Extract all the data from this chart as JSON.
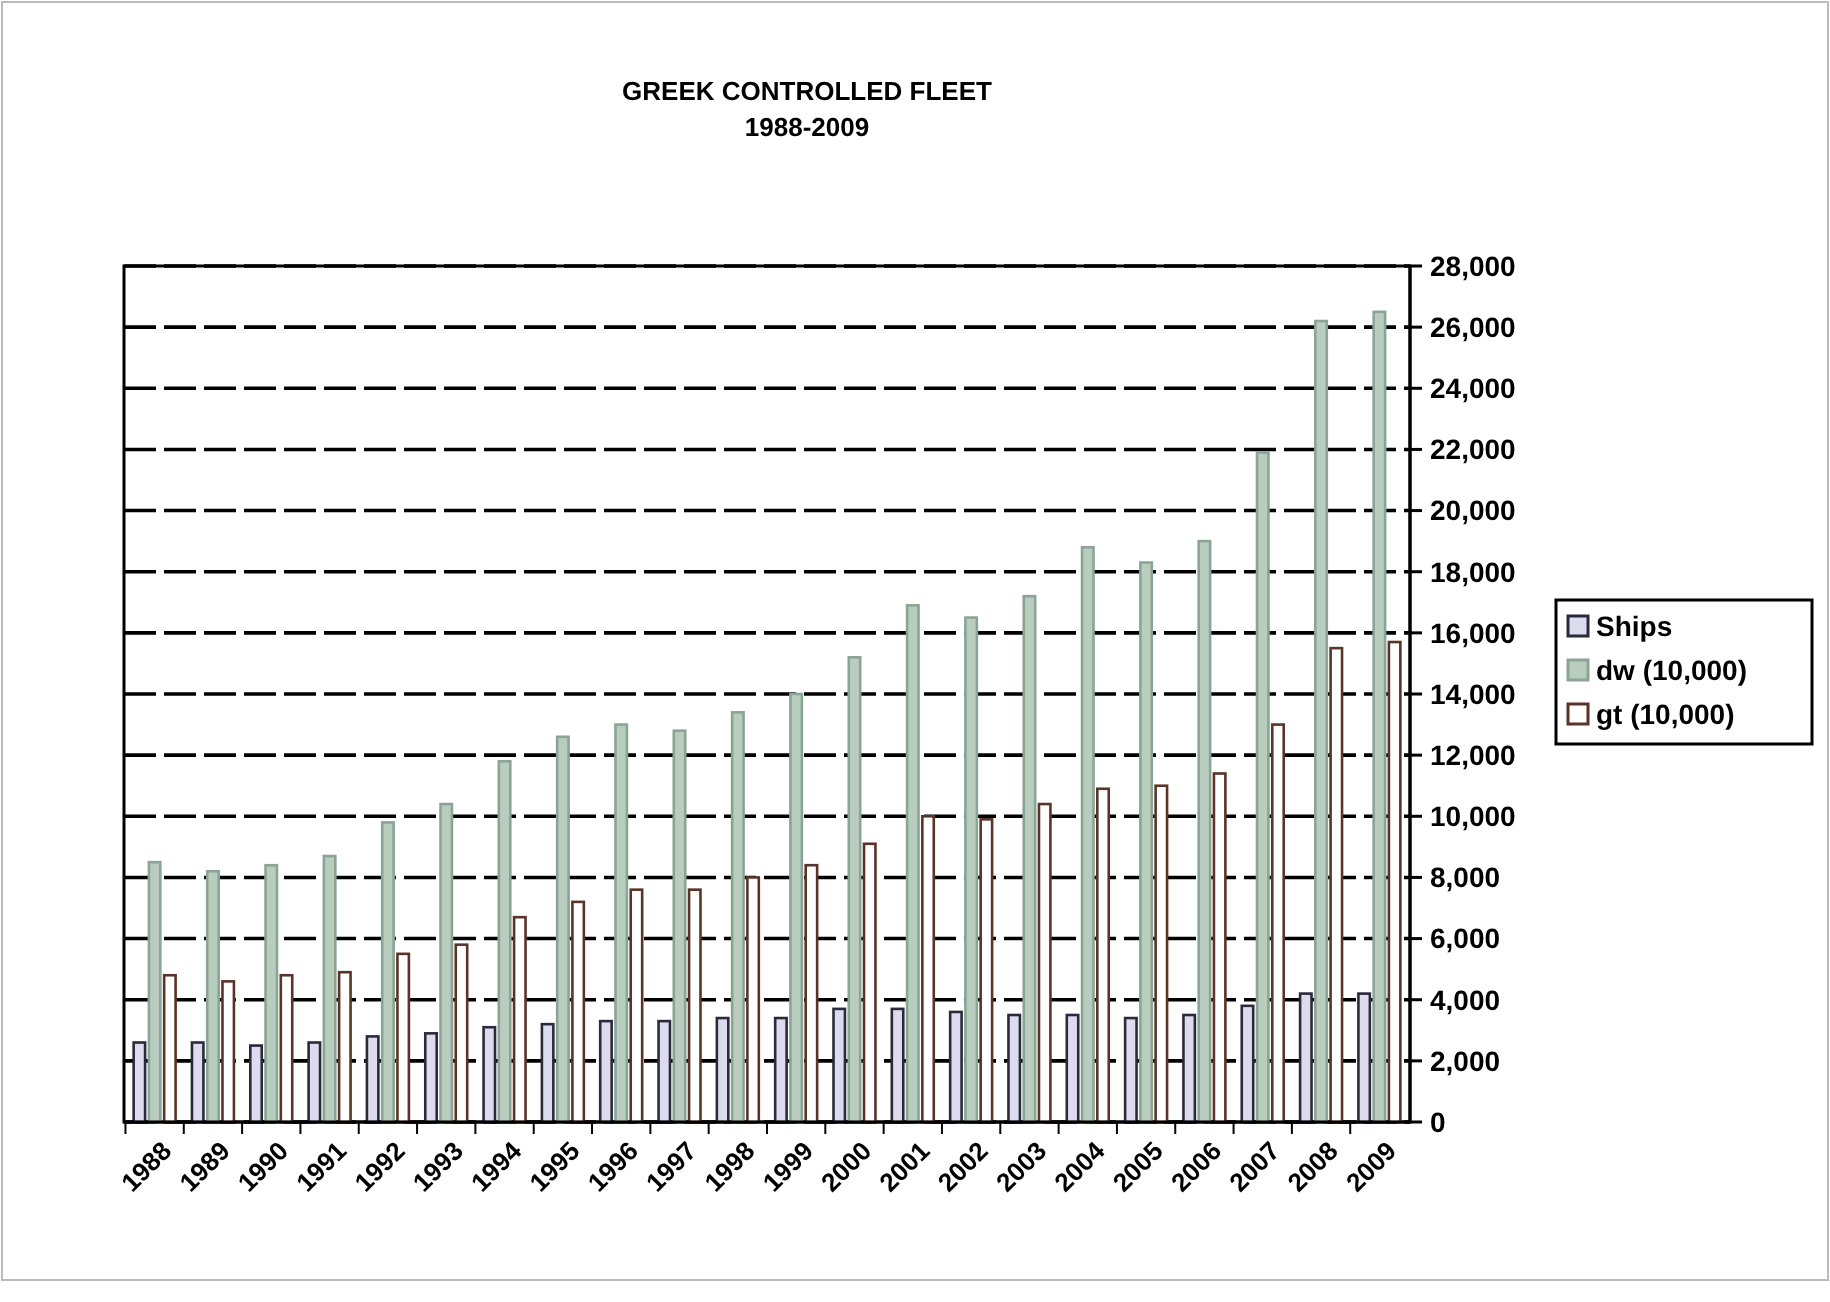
{
  "chart_data": {
    "type": "bar",
    "title": "GREEK CONTROLLED FLEET",
    "subtitle": "1988-2009",
    "categories": [
      "1988",
      "1989",
      "1990",
      "1991",
      "1992",
      "1993",
      "1994",
      "1995",
      "1996",
      "1997",
      "1998",
      "1999",
      "2000",
      "2001",
      "2002",
      "2003",
      "2004",
      "2005",
      "2006",
      "2007",
      "2008",
      "2009"
    ],
    "series": [
      {
        "name": "Ships",
        "color": "#dcdcee",
        "values": [
          2600,
          2600,
          2500,
          2600,
          2800,
          2900,
          3100,
          3200,
          3300,
          3300,
          3400,
          3400,
          3700,
          3700,
          3600,
          3500,
          3500,
          3400,
          3500,
          3800,
          4200,
          4200
        ]
      },
      {
        "name": "dw (10,000)",
        "color": "#b9cdbf",
        "values": [
          8500,
          8200,
          8400,
          8700,
          9800,
          10400,
          11800,
          12600,
          13000,
          12800,
          13400,
          14000,
          15200,
          16900,
          16500,
          17200,
          18800,
          18300,
          19000,
          21900,
          26200,
          26500
        ]
      },
      {
        "name": "gt (10,000)",
        "color": "#ffffff",
        "values": [
          4800,
          4600,
          4800,
          4900,
          5500,
          5800,
          6700,
          7200,
          7600,
          7600,
          8000,
          8400,
          9100,
          10000,
          9900,
          10400,
          10900,
          11000,
          11400,
          13000,
          15500,
          15700
        ]
      }
    ],
    "ylim": [
      0,
      28000
    ],
    "yticks": [
      {
        "value": 0,
        "label": "0"
      },
      {
        "value": 2000,
        "label": "2,000"
      },
      {
        "value": 4000,
        "label": "4,000"
      },
      {
        "value": 6000,
        "label": "6,000"
      },
      {
        "value": 8000,
        "label": "8,000"
      },
      {
        "value": 10000,
        "label": "10,000"
      },
      {
        "value": 12000,
        "label": "12,000"
      },
      {
        "value": 14000,
        "label": "14,000"
      },
      {
        "value": 16000,
        "label": "16,000"
      },
      {
        "value": 18000,
        "label": "18,000"
      },
      {
        "value": 20000,
        "label": "20,000"
      },
      {
        "value": 22000,
        "label": "22,000"
      },
      {
        "value": 24000,
        "label": "24,000"
      },
      {
        "value": 26000,
        "label": "26,000"
      },
      {
        "value": 28000,
        "label": "28,000"
      }
    ],
    "grid": "y",
    "legend": "right"
  }
}
